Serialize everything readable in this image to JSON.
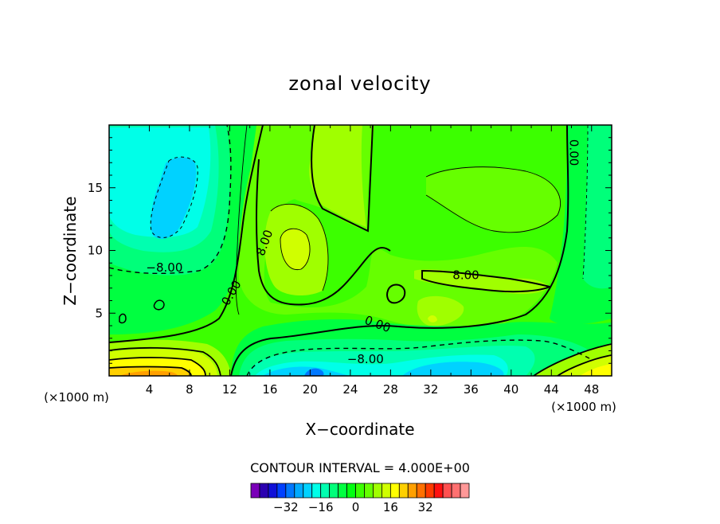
{
  "chart_data": {
    "type": "heatmap",
    "title": "zonal velocity",
    "xlabel": "X−coordinate",
    "ylabel": "Z−coordinate",
    "x_unit_left": "(×1000 m)",
    "x_unit_right": "(×1000 m)",
    "xlim": [
      0,
      50
    ],
    "ylim": [
      0,
      20
    ],
    "x_ticks": [
      4,
      8,
      12,
      16,
      20,
      24,
      28,
      32,
      36,
      40,
      44,
      48
    ],
    "x_tick_labels": [
      "4",
      "8",
      "12",
      "16",
      "20",
      "24",
      "28",
      "32",
      "36",
      "40",
      "44",
      "48"
    ],
    "y_ticks": [
      5,
      10,
      15
    ],
    "y_tick_labels": [
      "5",
      "10",
      "15"
    ],
    "contour_interval_text": "CONTOUR INTERVAL = 4.000E+00",
    "contour_labels": [
      {
        "text": "−8.00",
        "x": 5.5,
        "y": 8.6,
        "rot": 0
      },
      {
        "text": "0.00",
        "x": 12.2,
        "y": 6.6,
        "rot": -60
      },
      {
        "text": "8.00",
        "x": 15.5,
        "y": 10.6,
        "rot": -70
      },
      {
        "text": "8.00",
        "x": 35.5,
        "y": 8.0,
        "rot": 0
      },
      {
        "text": "0.00",
        "x": 46.2,
        "y": 17.8,
        "rot": 90
      },
      {
        "text": "0.00",
        "x": 26.7,
        "y": 4.1,
        "rot": 20
      },
      {
        "text": "−8.00",
        "x": 25.5,
        "y": 1.3,
        "rot": 0
      }
    ],
    "colorbar": {
      "colors": [
        "#7a00b8",
        "#2b00b0",
        "#1010d8",
        "#0040ff",
        "#0078ff",
        "#00aaff",
        "#00d2ff",
        "#00ffe8",
        "#00ffb0",
        "#00ff7a",
        "#00ff40",
        "#00ff10",
        "#3cff00",
        "#66ff00",
        "#a0ff00",
        "#d0ff00",
        "#ffff00",
        "#ffd000",
        "#ffa000",
        "#ff7000",
        "#ff3a00",
        "#ff1010",
        "#ff5050",
        "#ff7070",
        "#ff9898"
      ],
      "tick_labels": [
        "−32",
        "−16",
        "0",
        "16",
        "32"
      ],
      "tick_values": [
        -32,
        -16,
        0,
        16,
        32
      ],
      "start_value": -48,
      "step": 4
    },
    "field_colors": {
      "c_neg28": "#0078ff",
      "c_neg20": "#00d2ff",
      "c_neg16": "#00ffe8",
      "c_neg12": "#00ffb0",
      "c_neg8": "#00ff7a",
      "c_neg4": "#00ff40",
      "c_0": "#3cff00",
      "c_4": "#66ff00",
      "c_8": "#a0ff00",
      "c_12": "#d0ff00",
      "c_16": "#ffff00",
      "c_20": "#ffd000",
      "c_24": "#ffa000"
    }
  }
}
